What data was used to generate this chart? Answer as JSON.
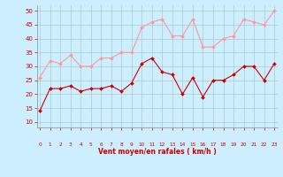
{
  "hours": [
    0,
    1,
    2,
    3,
    4,
    5,
    6,
    7,
    8,
    9,
    10,
    11,
    12,
    13,
    14,
    15,
    16,
    17,
    18,
    19,
    20,
    21,
    22,
    23
  ],
  "wind_avg": [
    14,
    22,
    22,
    23,
    21,
    22,
    22,
    23,
    21,
    24,
    31,
    33,
    28,
    27,
    20,
    26,
    19,
    25,
    25,
    27,
    30,
    30,
    25,
    31
  ],
  "wind_gust": [
    26,
    32,
    31,
    34,
    30,
    30,
    33,
    33,
    35,
    35,
    44,
    46,
    47,
    41,
    41,
    47,
    37,
    37,
    40,
    41,
    47,
    46,
    45,
    50
  ],
  "color_avg": "#cc0000",
  "color_gust": "#ff9999",
  "bg_color": "#cceeff",
  "grid_color": "#aacccc",
  "xlabel": "Vent moyen/en rafales ( km/h )",
  "xlabel_color": "#cc0000",
  "tick_color": "#cc0000",
  "arrow_color": "#cc0000",
  "ylim": [
    8,
    52
  ],
  "yticks": [
    10,
    15,
    20,
    25,
    30,
    35,
    40,
    45,
    50
  ],
  "xlim": [
    -0.3,
    23.3
  ]
}
